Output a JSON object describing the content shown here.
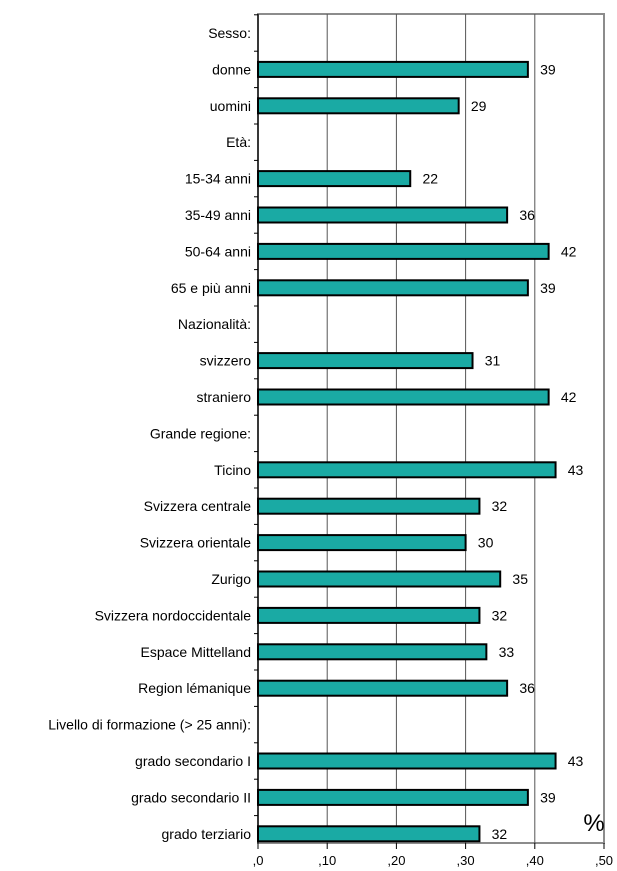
{
  "chart_data": {
    "type": "bar",
    "orientation": "horizontal",
    "categories": [
      "Sesso:",
      "donne",
      "uomini",
      "Età:",
      "15-34 anni",
      "35-49 anni",
      "50-64 anni",
      "65 e più anni",
      "Nazionalità:",
      "svizzero",
      "straniero",
      "Grande regione:",
      "Ticino",
      "Svizzera centrale",
      "Svizzera orientale",
      "Zurigo",
      "Svizzera nordoccidentale",
      "Espace Mittelland",
      "Region lémanique",
      "Livello di formazione (> 25 anni):",
      "grado secondario I",
      "grado secondario II",
      "grado terziario"
    ],
    "values": [
      null,
      0.39,
      0.29,
      null,
      0.22,
      0.36,
      0.42,
      0.39,
      null,
      0.31,
      0.42,
      null,
      0.43,
      0.32,
      0.3,
      0.35,
      0.32,
      0.33,
      0.36,
      null,
      0.43,
      0.39,
      0.32
    ],
    "data_labels": [
      "",
      "39",
      "29",
      "",
      "22",
      "36",
      "42",
      "39",
      "",
      "31",
      "42",
      "",
      "43",
      "32",
      "30",
      "35",
      "32",
      "33",
      "36",
      "",
      "43",
      "39",
      "32"
    ],
    "xlim": [
      0,
      0.5
    ],
    "xticks": [
      0,
      0.1,
      0.2,
      0.3,
      0.4,
      0.5
    ],
    "xtick_labels": [
      ",0",
      ",10",
      ",20",
      ",30",
      ",40",
      ",50"
    ],
    "unit_label": "%",
    "grid": "vertical",
    "legend": "none",
    "bar_color": "#1aaaa4"
  }
}
